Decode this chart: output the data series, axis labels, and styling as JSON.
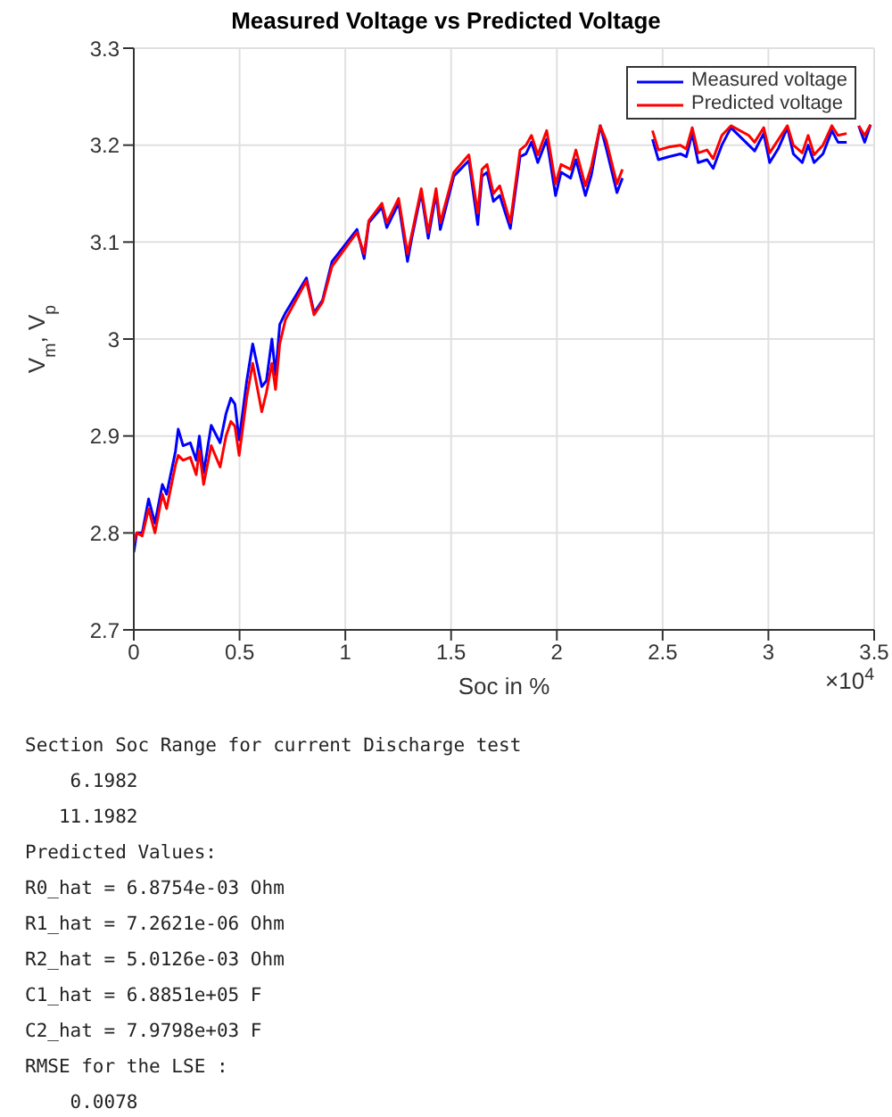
{
  "chart_data": {
    "type": "line",
    "title": "Measured Voltage vs Predicted Voltage",
    "xlabel": "Soc in %",
    "ylabel": "V$_{m}$, V$_{p}$",
    "x": [
      0,
      0.014,
      0.04,
      0.07,
      0.1,
      0.135,
      0.155,
      0.197,
      0.21,
      0.233,
      0.267,
      0.295,
      0.31,
      0.33,
      0.366,
      0.408,
      0.436,
      0.459,
      0.478,
      0.498,
      0.534,
      0.562,
      0.605,
      0.627,
      0.653,
      0.67,
      0.69,
      0.717,
      0.816,
      0.852,
      0.892,
      0.937,
      1.055,
      1.089,
      1.111,
      1.173,
      1.196,
      1.252,
      1.294,
      1.314,
      1.359,
      1.392,
      1.429,
      1.449,
      1.513,
      1.584,
      1.626,
      1.646,
      1.67,
      1.7,
      1.73,
      1.78,
      1.826,
      1.854,
      1.88,
      1.91,
      1.952,
      1.994,
      2.02,
      2.065,
      2.09,
      2.135,
      2.163,
      2.205,
      2.233,
      2.284,
      2.31,
      2.34,
      2.452,
      2.48,
      2.528,
      2.584,
      2.612,
      2.64,
      2.668,
      2.71,
      2.739,
      2.78,
      2.823,
      2.907,
      2.935,
      2.978,
      3.006,
      3.048,
      3.09,
      3.118,
      3.16,
      3.188,
      3.216,
      3.258,
      3.3,
      3.329,
      3.37,
      3.4,
      3.427,
      3.455,
      3.483
    ],
    "series": [
      {
        "name": "Measured voltage",
        "color": "#0000ff",
        "values": [
          2.78,
          2.8,
          2.8,
          2.835,
          2.81,
          2.85,
          2.84,
          2.884,
          2.907,
          2.89,
          2.893,
          2.875,
          2.9,
          2.862,
          2.911,
          2.893,
          2.923,
          2.939,
          2.933,
          2.896,
          2.957,
          2.995,
          2.951,
          2.957,
          3.0,
          2.963,
          3.015,
          3.027,
          3.063,
          3.027,
          3.04,
          3.08,
          3.113,
          3.083,
          3.12,
          3.136,
          3.115,
          3.14,
          3.08,
          3.104,
          3.151,
          3.104,
          3.15,
          3.113,
          3.168,
          3.184,
          3.118,
          3.168,
          3.172,
          3.142,
          3.148,
          3.114,
          3.188,
          3.191,
          3.203,
          3.182,
          3.206,
          3.148,
          3.172,
          3.166,
          3.185,
          3.148,
          3.169,
          3.22,
          3.197,
          3.151,
          3.166,
          null,
          3.206,
          3.185,
          3.188,
          3.191,
          3.188,
          3.212,
          3.182,
          3.185,
          3.176,
          3.2,
          3.218,
          3.2,
          3.194,
          3.212,
          3.182,
          3.197,
          3.218,
          3.191,
          3.182,
          3.2,
          3.182,
          3.191,
          3.215,
          3.203,
          3.203,
          null,
          3.22,
          3.203,
          3.221
        ]
      },
      {
        "name": "Predicted voltage",
        "color": "#ff0000",
        "values": [
          2.79,
          2.8,
          2.797,
          2.825,
          2.8,
          2.84,
          2.825,
          2.87,
          2.88,
          2.875,
          2.878,
          2.86,
          2.885,
          2.85,
          2.89,
          2.868,
          2.9,
          2.915,
          2.91,
          2.88,
          2.94,
          2.975,
          2.925,
          2.945,
          2.975,
          2.948,
          2.995,
          3.02,
          3.06,
          3.025,
          3.038,
          3.075,
          3.11,
          3.088,
          3.122,
          3.14,
          3.12,
          3.145,
          3.088,
          3.108,
          3.155,
          3.11,
          3.155,
          3.12,
          3.172,
          3.19,
          3.13,
          3.175,
          3.18,
          3.15,
          3.158,
          3.12,
          3.195,
          3.2,
          3.21,
          3.19,
          3.215,
          3.16,
          3.18,
          3.175,
          3.195,
          3.158,
          3.178,
          3.22,
          3.205,
          3.16,
          3.175,
          null,
          3.215,
          3.195,
          3.198,
          3.2,
          3.196,
          3.218,
          3.192,
          3.195,
          3.186,
          3.21,
          3.22,
          3.21,
          3.203,
          3.218,
          3.192,
          3.206,
          3.22,
          3.2,
          3.192,
          3.21,
          3.19,
          3.2,
          3.22,
          3.21,
          3.212,
          null,
          3.22,
          3.21,
          3.221
        ]
      }
    ],
    "xlim": [
      0,
      3.5
    ],
    "xticks": [
      0,
      0.5,
      1,
      1.5,
      2,
      2.5,
      3,
      3.5
    ],
    "ylim": [
      2.7,
      3.3
    ],
    "yticks": [
      2.7,
      2.8,
      2.9,
      3,
      3.1,
      3.2,
      3.3
    ],
    "grid": true,
    "legend": "top right",
    "marker": "none",
    "line_style": "solid",
    "annotations": [
      "×10$^{4}$",
      "Section Soc Range for current Discharge test",
      "    6.1982",
      "   11.1982",
      "Predicted Values:",
      "R0_hat = 6.8754e-03 Ohm",
      "R1_hat = 7.2621e-06 Ohm",
      "R2_hat = 5.0126e-03 Ohm",
      "C1_hat = 6.8851e+05 F",
      "C2_hat = 7.9798e+03 F",
      "RMSE for the LSE :",
      "    0.0078"
    ]
  }
}
